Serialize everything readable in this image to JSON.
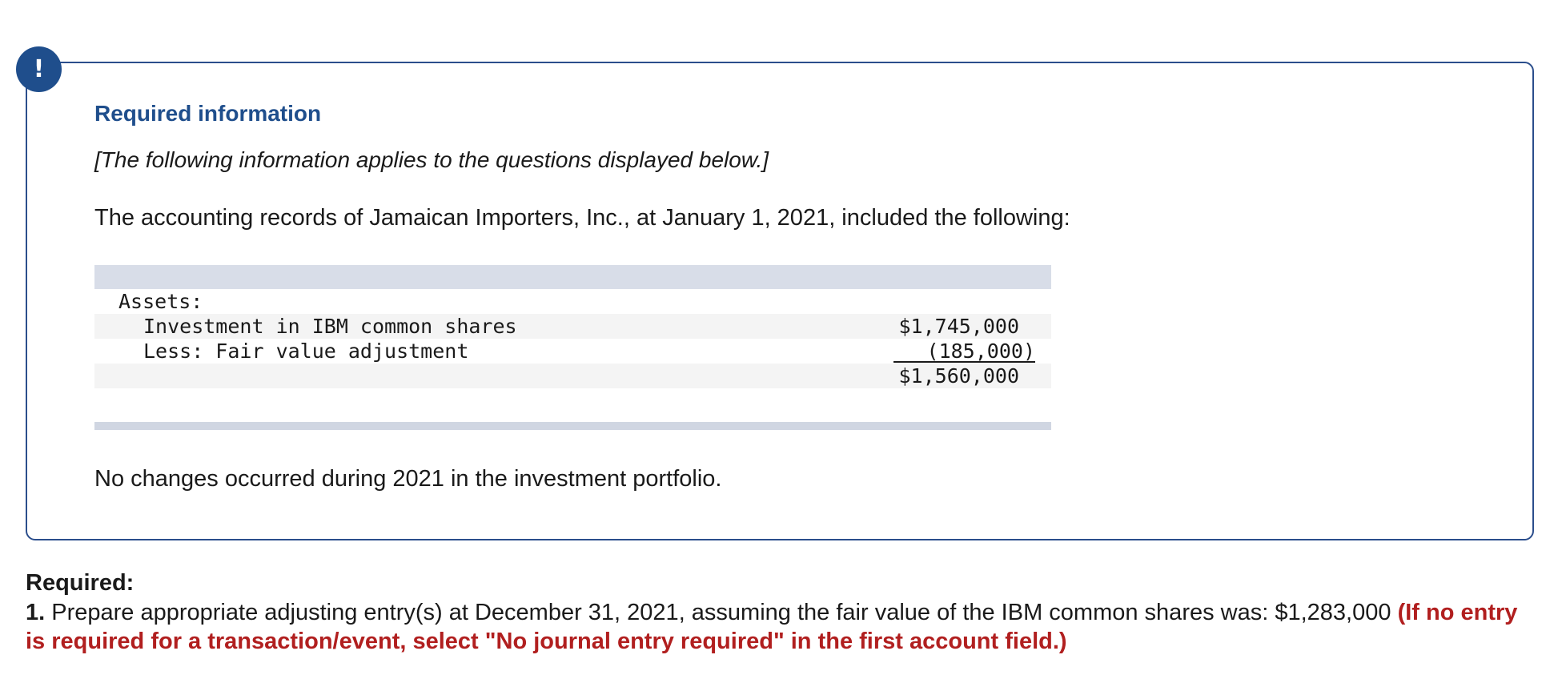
{
  "alert_badge": {
    "symbol": "!",
    "color": "#1f4e8c"
  },
  "info_box": {
    "title": "Required information",
    "note": "[The following information applies to the questions displayed below.]",
    "intro": "The accounting records of Jamaican Importers, Inc., at January 1, 2021, included the following:",
    "ledger": {
      "section_label": "Assets:",
      "rows": [
        {
          "label": "Investment in IBM common shares",
          "amount": "$1,745,000"
        },
        {
          "label": "Less: Fair value adjustment",
          "amount": "(185,000)"
        }
      ],
      "total": "$1,560,000"
    },
    "closing": "No changes occurred during 2021 in the investment portfolio."
  },
  "required": {
    "label": "Required:",
    "item_number": "1.",
    "item_text": "Prepare appropriate adjusting entry(s) at December 31, 2021, assuming the fair value of the IBM common shares was: $1,283,000",
    "item_hint": "(If no entry is required for a transaction/event, select \"No journal entry required\" in the first account field.)"
  },
  "colors": {
    "accent": "#1f4e8c",
    "border": "#2b4e8c",
    "hint": "#b11f1f",
    "table_header": "#d8dde8",
    "row_shade": "#f4f4f4"
  }
}
